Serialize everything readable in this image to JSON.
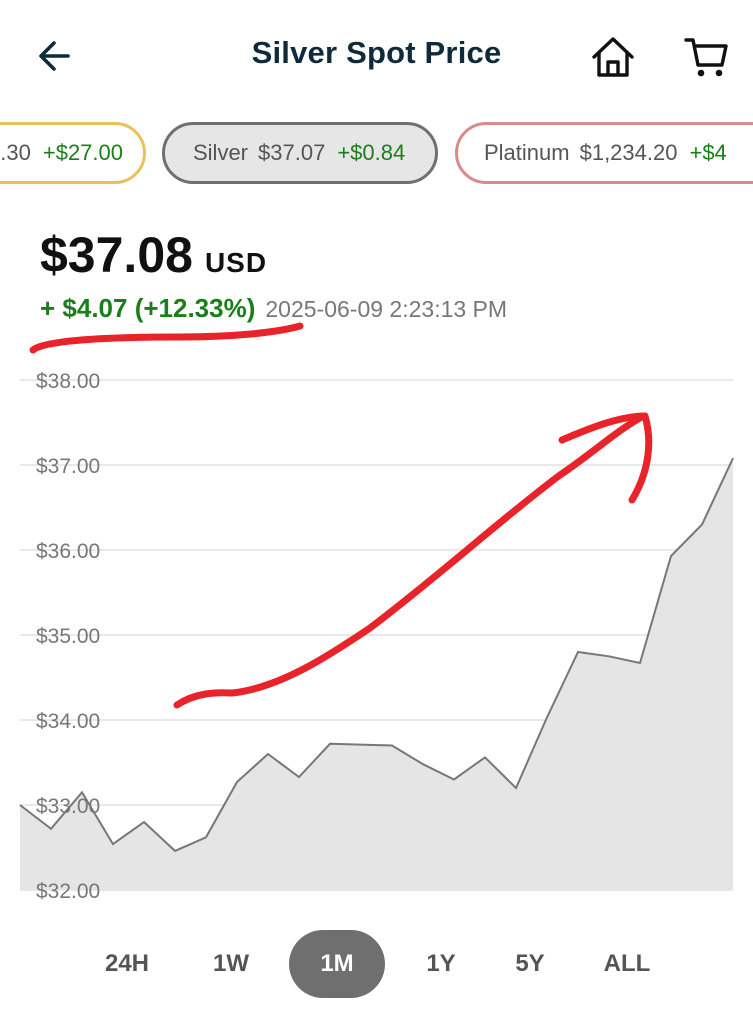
{
  "header": {
    "title": "Silver Spot Price",
    "back_icon": "arrow-left-icon",
    "home_icon": "home-icon",
    "cart_icon": "cart-icon"
  },
  "tickers": [
    {
      "name": "",
      "price": ".30",
      "change": "+$27.00",
      "border": "#e8c158"
    },
    {
      "name": "Silver",
      "price": "$37.07",
      "change": "+$0.84",
      "border": "#6f6f6f",
      "selected": true
    },
    {
      "name": "Platinum",
      "price": "$1,234.20",
      "change": "+$4",
      "border": "#d98a8a"
    }
  ],
  "quote": {
    "price": "$37.08",
    "currency": "USD",
    "change": "+ $4.07 (+12.33%)",
    "timestamp": "2025-06-09 2:23:13 PM"
  },
  "chart_data": {
    "type": "area",
    "title": "",
    "xlabel": "",
    "ylabel": "",
    "ylim": [
      32.0,
      38.0
    ],
    "yticks": [
      "$32.00",
      "$33.00",
      "$34.00",
      "$35.00",
      "$36.00",
      "$37.00",
      "$38.00"
    ],
    "grid": true,
    "series": [
      {
        "values": [
          33.0,
          32.72,
          33.15,
          32.54,
          32.8,
          32.46,
          32.62,
          33.27,
          33.6,
          33.33,
          33.72,
          33.71,
          33.7,
          33.48,
          33.3,
          33.56,
          33.2,
          34.03,
          34.8,
          34.75,
          34.67,
          35.93,
          36.3,
          37.08
        ],
        "color": "#777777",
        "fill": "#e5e5e5"
      }
    ]
  },
  "ranges": {
    "items": [
      "24H",
      "1W",
      "1M",
      "1Y",
      "5Y",
      "ALL"
    ],
    "active": "1M"
  },
  "annotation_color": "#e8232a"
}
